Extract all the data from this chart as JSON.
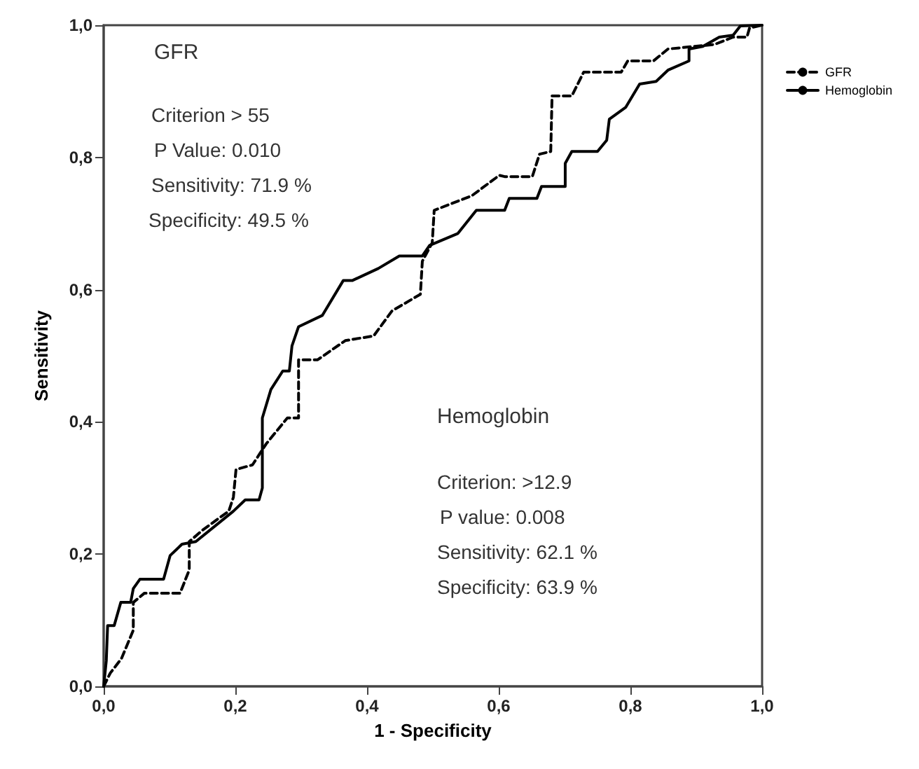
{
  "chart_data": {
    "type": "line",
    "xlabel": "1 - Specificity",
    "ylabel": "Sensitivity",
    "xlim": [
      0,
      1
    ],
    "ylim": [
      0,
      1
    ],
    "xticks": [
      {
        "value": 0,
        "label": "0,0"
      },
      {
        "value": 0.2,
        "label": "0,2"
      },
      {
        "value": 0.4,
        "label": "0,4"
      },
      {
        "value": 0.6,
        "label": "0,6"
      },
      {
        "value": 0.8,
        "label": "0,8"
      },
      {
        "value": 1,
        "label": "1,0"
      }
    ],
    "yticks": [
      {
        "value": 0,
        "label": "0,0"
      },
      {
        "value": 0.2,
        "label": "0,2"
      },
      {
        "value": 0.4,
        "label": "0,4"
      },
      {
        "value": 0.6,
        "label": "0,6"
      },
      {
        "value": 0.8,
        "label": "0,8"
      },
      {
        "value": 1,
        "label": "1,0"
      }
    ],
    "grid": false,
    "legend": "top right",
    "marker": "none",
    "series": [
      {
        "name": "GFR",
        "color": "#000000",
        "line_style": "dashed",
        "x": [
          0,
          0.01,
          0.027,
          0.045,
          0.045,
          0.062,
          0.116,
          0.13,
          0.13,
          0.151,
          0.19,
          0.197,
          0.201,
          0.226,
          0.247,
          0.279,
          0.296,
          0.296,
          0.325,
          0.367,
          0.41,
          0.438,
          0.481,
          0.484,
          0.499,
          0.502,
          0.559,
          0.601,
          0.609,
          0.651,
          0.662,
          0.679,
          0.681,
          0.711,
          0.729,
          0.786,
          0.796,
          0.835,
          0.857,
          0.928,
          0.956,
          0.977,
          0.981,
          1
        ],
        "values": [
          0,
          0.02,
          0.042,
          0.085,
          0.127,
          0.141,
          0.141,
          0.176,
          0.219,
          0.237,
          0.265,
          0.286,
          0.328,
          0.335,
          0.367,
          0.406,
          0.406,
          0.494,
          0.494,
          0.523,
          0.53,
          0.568,
          0.593,
          0.643,
          0.671,
          0.72,
          0.742,
          0.773,
          0.771,
          0.771,
          0.805,
          0.809,
          0.893,
          0.893,
          0.929,
          0.929,
          0.946,
          0.946,
          0.964,
          0.971,
          0.982,
          0.982,
          0.996,
          1
        ]
      },
      {
        "name": "Hemoglobin",
        "color": "#000000",
        "line_style": "solid",
        "x": [
          0,
          0.004,
          0.006,
          0.016,
          0.026,
          0.041,
          0.045,
          0.055,
          0.091,
          0.101,
          0.119,
          0.14,
          0.197,
          0.215,
          0.236,
          0.241,
          0.241,
          0.254,
          0.272,
          0.282,
          0.286,
          0.296,
          0.332,
          0.364,
          0.378,
          0.417,
          0.449,
          0.484,
          0.495,
          0.538,
          0.566,
          0.609,
          0.616,
          0.658,
          0.665,
          0.701,
          0.701,
          0.711,
          0.75,
          0.764,
          0.768,
          0.793,
          0.814,
          0.839,
          0.857,
          0.889,
          0.889,
          0.91,
          0.935,
          0.956,
          0.967,
          1
        ],
        "values": [
          0,
          0.039,
          0.092,
          0.092,
          0.127,
          0.127,
          0.148,
          0.162,
          0.162,
          0.198,
          0.215,
          0.219,
          0.265,
          0.282,
          0.282,
          0.3,
          0.406,
          0.449,
          0.477,
          0.477,
          0.515,
          0.544,
          0.561,
          0.614,
          0.614,
          0.632,
          0.651,
          0.651,
          0.667,
          0.685,
          0.72,
          0.72,
          0.738,
          0.738,
          0.756,
          0.756,
          0.791,
          0.809,
          0.809,
          0.826,
          0.858,
          0.876,
          0.911,
          0.915,
          0.932,
          0.946,
          0.964,
          0.968,
          0.982,
          0.985,
          0.999,
          1
        ]
      }
    ],
    "annotations": [
      "GFR",
      "Criterion > 55",
      "P Value: 0.010",
      "Sensitivity: 71.9 %",
      "Specificity: 49.5 %",
      "Hemoglobin",
      "Criterion: >12.9",
      "P value: 0.008",
      "Sensitivity: 62.1 %",
      "Specificity: 63.9 %"
    ]
  }
}
